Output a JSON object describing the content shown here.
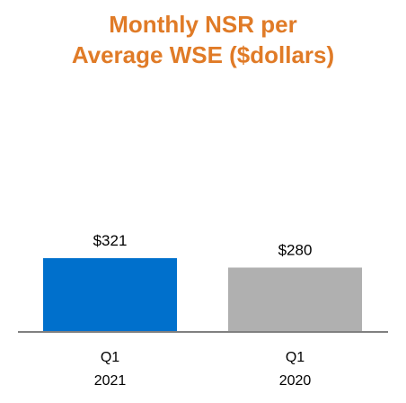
{
  "chart_data": {
    "type": "bar",
    "title_lines": [
      "Monthly NSR per",
      "Average WSE ($dollars)"
    ],
    "categories": [
      [
        "Q1",
        "2021"
      ],
      [
        "Q1",
        "2020"
      ]
    ],
    "values": [
      321,
      280
    ],
    "data_labels": [
      "$321",
      "$280"
    ],
    "colors": [
      "#0070CC",
      "#B0B0B0"
    ],
    "title_color": "#E07B27",
    "xlabel": "",
    "ylabel": "",
    "ylim": [
      0,
      1000
    ],
    "grid": false,
    "legend": "none"
  }
}
